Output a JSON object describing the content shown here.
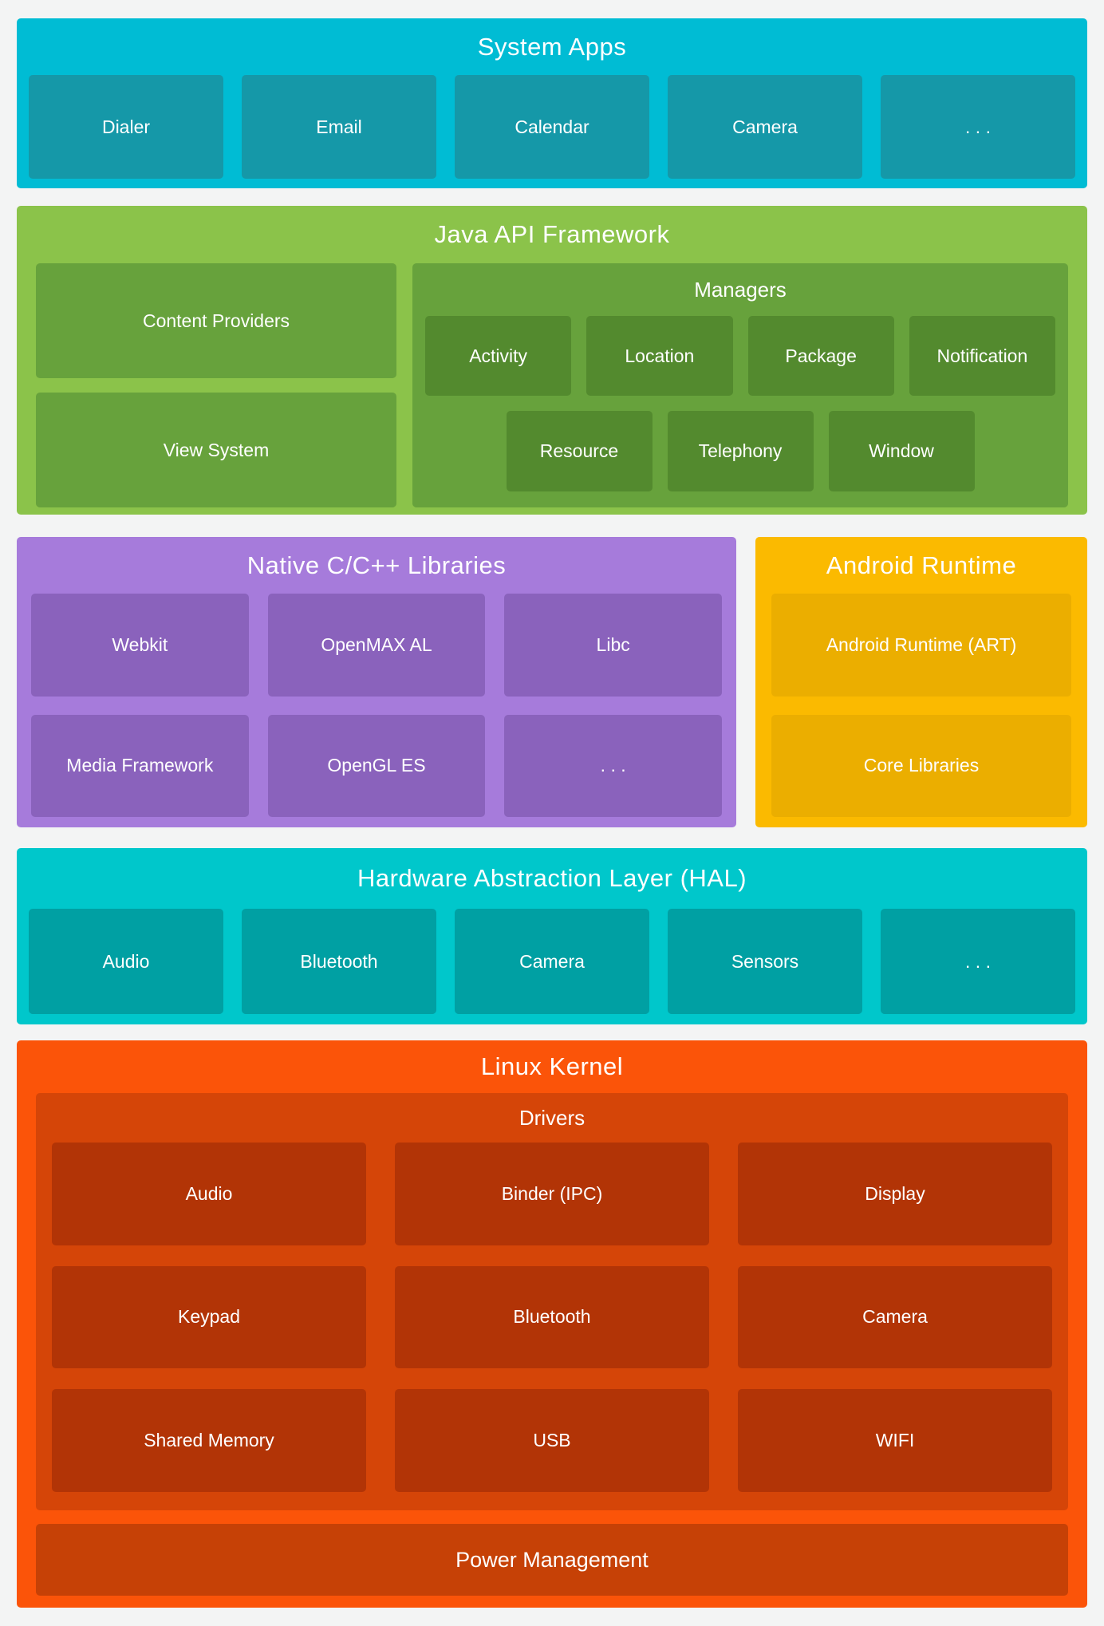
{
  "colors": {
    "page_bg": "#F3F4F4",
    "text": "#FFFFFF",
    "system_apps_bg": "#00BCD4",
    "system_apps_box": "#1598A8",
    "java_api_bg": "#8BC34A",
    "java_api_panel": "#67A23C",
    "java_api_box": "#538A2E",
    "native_libs_bg": "#A67BDB",
    "native_libs_box": "#8A62BC",
    "android_runtime_bg": "#FBBA00",
    "android_runtime_box": "#EBAE00",
    "hal_bg": "#00C7CB",
    "hal_box": "#00A0A3",
    "linux_kernel_bg": "#FB5409",
    "drivers_panel_bg": "#D54508",
    "driver_box": "#B23406",
    "power_bar": "#C64106"
  },
  "system_apps": {
    "title": "System Apps",
    "boxes": [
      "Dialer",
      "Email",
      "Calendar",
      "Camera",
      ". . ."
    ]
  },
  "java_api_framework": {
    "title": "Java API Framework",
    "content_providers": "Content Providers",
    "view_system": "View System",
    "managers": {
      "title": "Managers",
      "row1": [
        "Activity",
        "Location",
        "Package",
        "Notification"
      ],
      "row2": [
        "Resource",
        "Telephony",
        "Window"
      ]
    }
  },
  "native_libraries": {
    "title": "Native C/C++ Libraries",
    "row1": [
      "Webkit",
      "OpenMAX AL",
      "Libc"
    ],
    "row2": [
      "Media Framework",
      "OpenGL ES",
      ". . ."
    ]
  },
  "android_runtime": {
    "title": "Android Runtime",
    "boxes": [
      "Android Runtime (ART)",
      "Core Libraries"
    ]
  },
  "hal": {
    "title": "Hardware Abstraction Layer (HAL)",
    "boxes": [
      "Audio",
      "Bluetooth",
      "Camera",
      "Sensors",
      ". . ."
    ]
  },
  "linux_kernel": {
    "title": "Linux Kernel",
    "drivers": {
      "title": "Drivers",
      "row1": [
        "Audio",
        "Binder (IPC)",
        "Display"
      ],
      "row2": [
        "Keypad",
        "Bluetooth",
        "Camera"
      ],
      "row3": [
        "Shared Memory",
        "USB",
        "WIFI"
      ]
    },
    "power_management": "Power Management"
  }
}
